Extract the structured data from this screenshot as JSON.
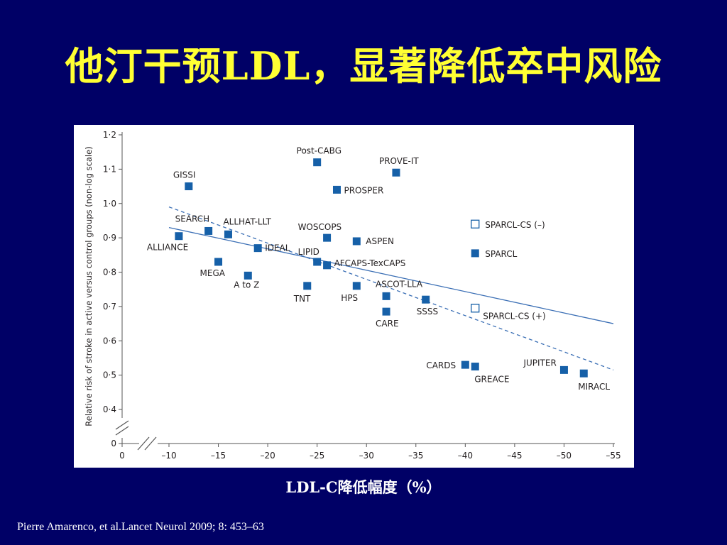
{
  "slide": {
    "title": "他汀干预LDL，显著降低卒中风险",
    "x_caption": "LDL-C降低幅度（%）",
    "citation": "Pierre Amarenco, et al.Lancet Neurol 2009; 8: 453–63"
  },
  "colors": {
    "background": "#000066",
    "title": "#ffff33",
    "caption": "#ffffff",
    "point": "#1660a8",
    "line": "#3b6fb5",
    "text": "#231f20",
    "axis": "#555555"
  },
  "chart_data": {
    "type": "scatter",
    "ylabel": "Relative risk of stroke in active versus control groups (non-log scale)",
    "xlabel": "",
    "xlim": [
      0,
      -55
    ],
    "ylim": [
      0,
      1.2
    ],
    "axis_break": true,
    "x_ticks": [
      0,
      -10,
      -15,
      -20,
      -25,
      -30,
      -35,
      -40,
      -45,
      -50,
      -55
    ],
    "x_tick_labels": [
      "0",
      "–10",
      "–15",
      "–20",
      "–25",
      "–30",
      "–35",
      "–40",
      "–45",
      "–50",
      "–55"
    ],
    "y_ticks": [
      0,
      0.4,
      0.5,
      0.6,
      0.7,
      0.8,
      0.9,
      1.0,
      1.1,
      1.2
    ],
    "y_tick_labels": [
      "0",
      "0·4",
      "0·5",
      "0·6",
      "0·7",
      "0·8",
      "0·9",
      "1·0",
      "1·1",
      "1·2"
    ],
    "points": [
      {
        "label": "Post-CABG",
        "x": -25,
        "y": 1.12,
        "filled": true
      },
      {
        "label": "PROVE-IT",
        "x": -33,
        "y": 1.09,
        "filled": true
      },
      {
        "label": "GISSI",
        "x": -12,
        "y": 1.05,
        "filled": true
      },
      {
        "label": "PROSPER",
        "x": -27,
        "y": 1.04,
        "filled": true
      },
      {
        "label": "SEARCH",
        "x": -14,
        "y": 0.92,
        "filled": true
      },
      {
        "label": "ALLHAT-LLT",
        "x": -16,
        "y": 0.91,
        "filled": true
      },
      {
        "label": "ALLIANCE",
        "x": -11,
        "y": 0.905,
        "filled": true
      },
      {
        "label": "WOSCOPS",
        "x": -26,
        "y": 0.9,
        "filled": true
      },
      {
        "label": "ASPEN",
        "x": -29,
        "y": 0.89,
        "filled": true
      },
      {
        "label": "IDEAL",
        "x": -19,
        "y": 0.87,
        "filled": true
      },
      {
        "label": "LIPID",
        "x": -25,
        "y": 0.83,
        "filled": true
      },
      {
        "label": "AFCAPS-TexCAPS",
        "x": -26,
        "y": 0.82,
        "filled": true
      },
      {
        "label": "MEGA",
        "x": -15,
        "y": 0.83,
        "filled": true
      },
      {
        "label": "A to Z",
        "x": -18,
        "y": 0.79,
        "filled": true
      },
      {
        "label": "TNT",
        "x": -24,
        "y": 0.76,
        "filled": true
      },
      {
        "label": "HPS",
        "x": -29,
        "y": 0.76,
        "filled": true
      },
      {
        "label": "ASCOT-LLA",
        "x": -32,
        "y": 0.73,
        "filled": true
      },
      {
        "label": "SSSS",
        "x": -36,
        "y": 0.72,
        "filled": true
      },
      {
        "label": "CARE",
        "x": -32,
        "y": 0.685,
        "filled": true
      },
      {
        "label": "SPARCL-CS (–)",
        "x": -41,
        "y": 0.94,
        "filled": false
      },
      {
        "label": "SPARCL",
        "x": -41,
        "y": 0.855,
        "filled": true
      },
      {
        "label": "SPARCL-CS (+)",
        "x": -41,
        "y": 0.695,
        "filled": false
      },
      {
        "label": "CARDS",
        "x": -40,
        "y": 0.53,
        "filled": true
      },
      {
        "label": "GREACE",
        "x": -41,
        "y": 0.525,
        "filled": true
      },
      {
        "label": "JUPITER",
        "x": -50,
        "y": 0.515,
        "filled": true
      },
      {
        "label": "MIRACL",
        "x": -52,
        "y": 0.505,
        "filled": true
      }
    ],
    "lines": [
      {
        "style": "solid",
        "x": [
          -10,
          -55
        ],
        "y": [
          0.93,
          0.65
        ]
      },
      {
        "style": "dashed",
        "x": [
          -10,
          -55
        ],
        "y": [
          0.99,
          0.515
        ]
      }
    ]
  }
}
